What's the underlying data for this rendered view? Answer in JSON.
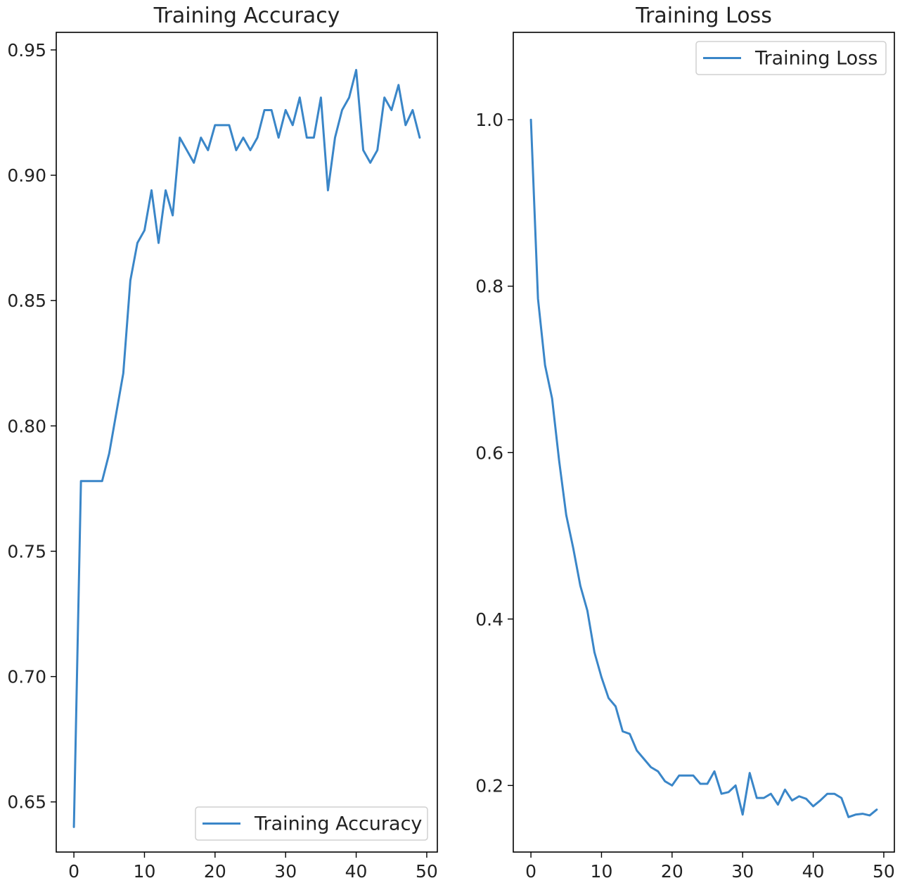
{
  "chart_data": [
    {
      "type": "line",
      "title": "Training Accuracy",
      "xlabel": "",
      "ylabel": "",
      "xlim": [
        -2.5,
        51.5
      ],
      "ylim": [
        0.63,
        0.957
      ],
      "xticks": [
        0,
        10,
        20,
        30,
        40,
        50
      ],
      "yticks": [
        0.65,
        0.7,
        0.75,
        0.8,
        0.85,
        0.9,
        0.95
      ],
      "ytick_labels": [
        "0.65",
        "0.70",
        "0.75",
        "0.80",
        "0.85",
        "0.90",
        "0.95"
      ],
      "xtick_labels": [
        "0",
        "10",
        "20",
        "30",
        "40",
        "50"
      ],
      "grid": false,
      "legend_position": "lower-right",
      "series": [
        {
          "name": "Training Accuracy",
          "color": "#3a86c8",
          "x": [
            0,
            1,
            2,
            3,
            4,
            5,
            6,
            7,
            8,
            9,
            10,
            11,
            12,
            13,
            14,
            15,
            16,
            17,
            18,
            19,
            20,
            21,
            22,
            23,
            24,
            25,
            26,
            27,
            28,
            29,
            30,
            31,
            32,
            33,
            34,
            35,
            36,
            37,
            38,
            39,
            40,
            41,
            42,
            43,
            44,
            45,
            46,
            47,
            48,
            49
          ],
          "values": [
            0.64,
            0.778,
            0.778,
            0.778,
            0.778,
            0.789,
            0.805,
            0.821,
            0.858,
            0.873,
            0.878,
            0.894,
            0.873,
            0.894,
            0.884,
            0.915,
            0.91,
            0.905,
            0.915,
            0.91,
            0.92,
            0.92,
            0.92,
            0.91,
            0.915,
            0.91,
            0.915,
            0.926,
            0.926,
            0.915,
            0.926,
            0.92,
            0.931,
            0.915,
            0.915,
            0.931,
            0.894,
            0.915,
            0.926,
            0.931,
            0.942,
            0.91,
            0.905,
            0.91,
            0.931,
            0.926,
            0.936,
            0.92,
            0.926,
            0.915
          ]
        }
      ]
    },
    {
      "type": "line",
      "title": "Training Loss",
      "xlabel": "",
      "ylabel": "",
      "xlim": [
        -2.5,
        51.5
      ],
      "ylim": [
        0.12,
        1.105
      ],
      "xticks": [
        0,
        10,
        20,
        30,
        40,
        50
      ],
      "yticks": [
        0.2,
        0.4,
        0.6,
        0.8,
        1.0
      ],
      "ytick_labels": [
        "0.2",
        "0.4",
        "0.6",
        "0.8",
        "1.0"
      ],
      "xtick_labels": [
        "0",
        "10",
        "20",
        "30",
        "40",
        "50"
      ],
      "grid": false,
      "legend_position": "upper-right",
      "series": [
        {
          "name": "Training Loss",
          "color": "#3a86c8",
          "x": [
            0,
            1,
            2,
            3,
            4,
            5,
            6,
            7,
            8,
            9,
            10,
            11,
            12,
            13,
            14,
            15,
            16,
            17,
            18,
            19,
            20,
            21,
            22,
            23,
            24,
            25,
            26,
            27,
            28,
            29,
            30,
            31,
            32,
            33,
            34,
            35,
            36,
            37,
            38,
            39,
            40,
            41,
            42,
            43,
            44,
            45,
            46,
            47,
            48,
            49
          ],
          "values": [
            1.0,
            0.785,
            0.705,
            0.665,
            0.59,
            0.525,
            0.485,
            0.44,
            0.41,
            0.36,
            0.33,
            0.305,
            0.295,
            0.265,
            0.262,
            0.242,
            0.232,
            0.222,
            0.217,
            0.205,
            0.2,
            0.212,
            0.212,
            0.212,
            0.202,
            0.202,
            0.217,
            0.19,
            0.192,
            0.2,
            0.165,
            0.215,
            0.185,
            0.185,
            0.19,
            0.177,
            0.195,
            0.182,
            0.187,
            0.184,
            0.175,
            0.182,
            0.19,
            0.19,
            0.185,
            0.162,
            0.165,
            0.166,
            0.164,
            0.171
          ]
        }
      ]
    }
  ]
}
